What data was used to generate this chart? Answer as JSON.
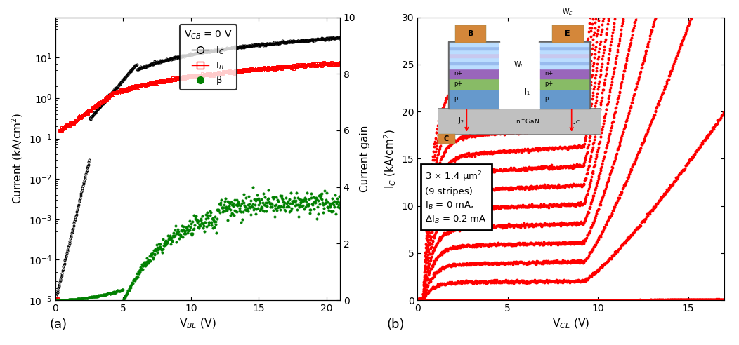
{
  "panel_a": {
    "xlabel": "V$_{BE}$ (V)",
    "ylabel_left": "Current (kA/cm$^2$)",
    "ylabel_right": "Current gain",
    "xlim": [
      0,
      21
    ],
    "ylim_left": [
      1e-05,
      100
    ],
    "ylim_right": [
      0,
      10
    ],
    "legend_title": "V$_{CB}$ = 0 V",
    "xticks": [
      0,
      5,
      10,
      15,
      20
    ],
    "yticks_left": [
      1e-05,
      0.0001,
      0.001,
      0.01,
      0.1,
      1.0,
      10.0
    ],
    "yticks_right": [
      0,
      2,
      4,
      6,
      8,
      10
    ]
  },
  "panel_b": {
    "xlabel": "V$_{CE}$ (V)",
    "ylabel": "I$_C$ (kA/cm$^2$)",
    "xlim": [
      0,
      17
    ],
    "ylim": [
      0,
      30
    ],
    "annotation": "3 × 1.4 μm$^2$\n(9 stripes)\nI$_B$ = 0 mA,\nΔI$_B$ = 0.2 mA",
    "num_curves": 13,
    "xticks": [
      0,
      5,
      10,
      15
    ],
    "yticks": [
      0,
      5,
      10,
      15,
      20,
      25,
      30
    ]
  },
  "inset": {
    "col_metal": "#D4873A",
    "col_n_plus": "#9966BB",
    "col_p_plus": "#88BB66",
    "col_p": "#6699CC",
    "col_n_gan": "#C0C0C0",
    "col_gray_outline": "#666666",
    "col_white": "#FFFFFF"
  }
}
